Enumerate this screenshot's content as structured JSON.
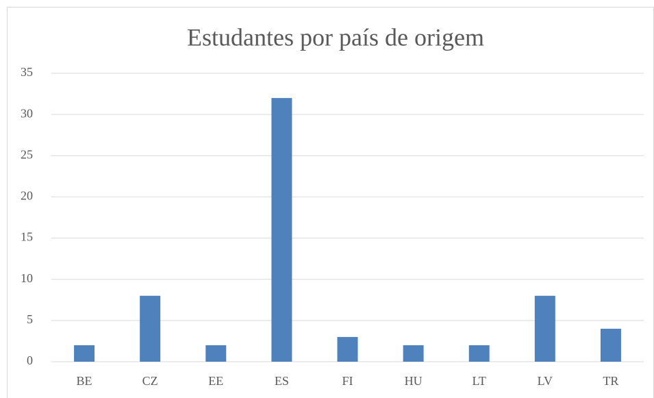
{
  "chart_data": {
    "type": "bar",
    "title": "Estudantes por país de origem",
    "categories": [
      "BE",
      "CZ",
      "EE",
      "ES",
      "FI",
      "HU",
      "LT",
      "LV",
      "TR"
    ],
    "values": [
      2,
      8,
      2,
      32,
      3,
      2,
      2,
      8,
      4
    ],
    "color": "#4f81bd",
    "ylim": [
      0,
      35
    ],
    "yticks": [
      0,
      5,
      10,
      15,
      20,
      25,
      30,
      35
    ],
    "grid": true
  }
}
